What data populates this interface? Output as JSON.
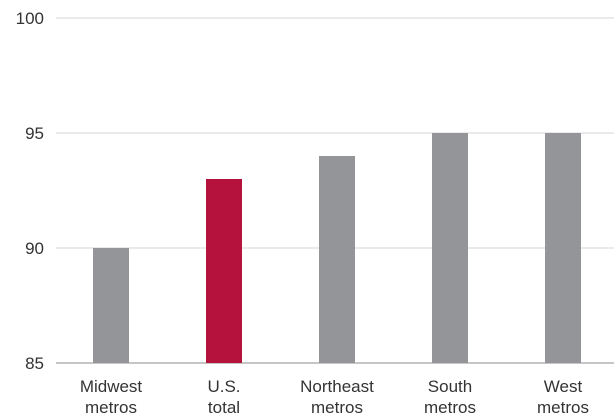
{
  "chart_data": {
    "type": "bar",
    "categories": [
      [
        "Midwest",
        "metros"
      ],
      [
        "U.S.",
        "total"
      ],
      [
        "Northeast",
        "metros"
      ],
      [
        "South",
        "metros"
      ],
      [
        "West",
        "metros"
      ]
    ],
    "values": [
      90,
      93,
      94,
      95,
      95
    ],
    "ylim": [
      85,
      100
    ],
    "yticks": [
      85,
      90,
      95,
      100
    ],
    "grid": true,
    "title": "",
    "xlabel": "",
    "ylabel": "",
    "colors": {
      "default_bar": "#939598",
      "highlight_bar": "#b5123e",
      "grid": "#d4d4d4",
      "axis": "#8c8c8c",
      "text": "#333333"
    },
    "highlight_index": 1
  }
}
